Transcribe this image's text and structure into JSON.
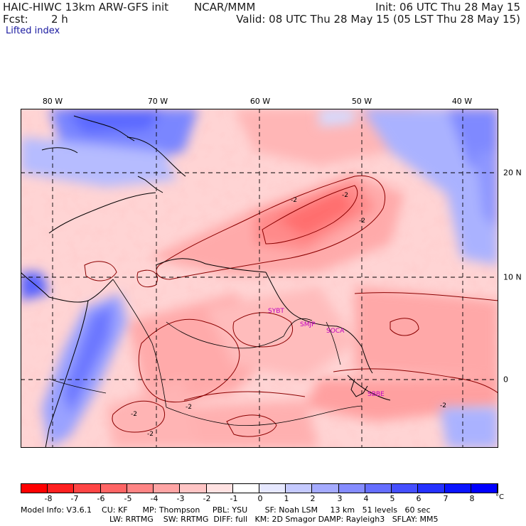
{
  "header": {
    "model": "HAIC-HIWC 13km ARW-GFS init",
    "org": "NCAR/MMM",
    "init": "Init: 06 UTC Thu 28 May 15",
    "fcst_label": "Fcst:",
    "fcst_value": "2 h",
    "valid": "Valid: 08 UTC Thu 28 May 15 (05 LST Thu 28 May 15)",
    "field": "Lifted index"
  },
  "axes": {
    "lon_labels": [
      "80 W",
      "70 W",
      "60 W",
      "50 W",
      "40 W"
    ],
    "lat_labels": [
      "20 N",
      "10 N",
      "0"
    ]
  },
  "contour_labels": [
    "-2",
    "-2",
    "-2",
    "-2",
    "-2",
    "-2",
    "-2"
  ],
  "stations": [
    "SYBT",
    "SMJP",
    "SOCA",
    "SBBE"
  ],
  "colorbar": {
    "ticks": [
      "-8",
      "-7",
      "-6",
      "-5",
      "-4",
      "-3",
      "-2",
      "-1",
      "0",
      "1",
      "2",
      "3",
      "4",
      "5",
      "6",
      "7",
      "8"
    ],
    "unit": "°C",
    "colors": [
      "#ff0000",
      "#ff2020",
      "#ff4545",
      "#ff6565",
      "#ff8585",
      "#ffa5a5",
      "#ffc5c5",
      "#ffe2e2",
      "#ffffff",
      "#e6e8ff",
      "#c5caff",
      "#a5abff",
      "#858cff",
      "#656eff",
      "#454fff",
      "#2531ff",
      "#0a14ff",
      "#0000ff"
    ]
  },
  "footer": {
    "line1": "Model Info: V3.6.1    CU: KF      MP: Thompson     PBL: YSU       SF: Noah LSM     13 km   51 levels   60 sec",
    "line2": "LW: RRTMG    SW: RRTMG  DIFF: full   KM: 2D Smagor DAMP: Rayleigh3   SFLAY: MM5"
  }
}
